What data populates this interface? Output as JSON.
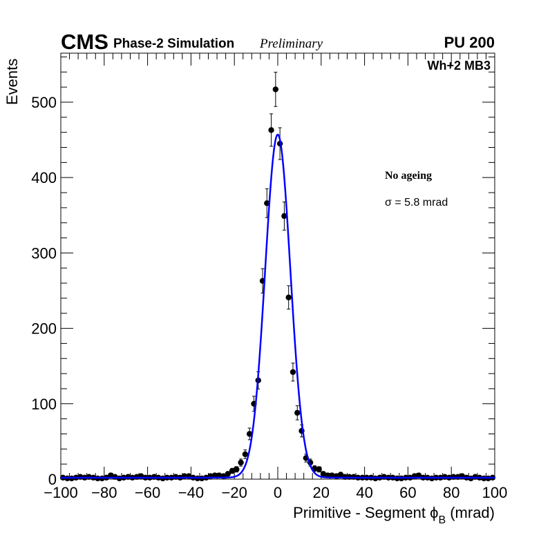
{
  "header": {
    "experiment": "CMS",
    "subtitle": "Phase-2 Simulation",
    "status": "Preliminary",
    "pileup": "PU 200"
  },
  "annotations": {
    "region": "Wh+2 MB3",
    "ageing": "No ageing",
    "sigma_symbol": "σ",
    "sigma_text": " = 5.8 mrad"
  },
  "chart_data": {
    "type": "scatter",
    "xlabel": "Primitive - Segment ϕ",
    "xlabel_sub": "B",
    "xlabel_unit": " (mrad)",
    "ylabel": "Events",
    "xlim": [
      -100,
      100
    ],
    "ylim": [
      0,
      565
    ],
    "x_ticks": [
      -100,
      -80,
      -60,
      -40,
      -20,
      0,
      20,
      40,
      60,
      80,
      100
    ],
    "x_tick_labels": [
      "−100",
      "−80",
      "−60",
      "−40",
      "−20",
      "0",
      "20",
      "40",
      "60",
      "80",
      "100"
    ],
    "y_ticks": [
      0,
      100,
      200,
      300,
      400,
      500
    ],
    "y_tick_labels": [
      "0",
      "100",
      "200",
      "300",
      "400",
      "500"
    ],
    "colors": {
      "points": "#000000",
      "fit": "#0000ff"
    },
    "series": [
      {
        "x": [
          -99,
          -97,
          -95,
          -93,
          -91,
          -89,
          -87,
          -85,
          -83,
          -81,
          -79,
          -77,
          -75,
          -73,
          -71,
          -69,
          -67,
          -65,
          -63,
          -61,
          -59,
          -57,
          -55,
          -53,
          -51,
          -49,
          -47,
          -45,
          -43,
          -41,
          -39,
          -37,
          -35,
          -33,
          -31,
          -29,
          -27,
          -25,
          -23,
          -21,
          -19,
          -17,
          -15,
          -13,
          -11,
          -9,
          -7,
          -5,
          -3,
          -1,
          1,
          3,
          5,
          7,
          9,
          11,
          13,
          15,
          17,
          19,
          21,
          23,
          25,
          27,
          29,
          31,
          33,
          35,
          37,
          39,
          41,
          43,
          45,
          47,
          49,
          51,
          53,
          55,
          57,
          59,
          61,
          63,
          65,
          67,
          69,
          71,
          73,
          75,
          77,
          79,
          81,
          83,
          85,
          87,
          89,
          91,
          93,
          95,
          97,
          99
        ],
        "y": [
          2,
          1,
          1,
          2,
          3,
          2,
          3,
          2,
          1,
          1,
          2,
          5,
          3,
          1,
          2,
          3,
          2,
          3,
          4,
          2,
          2,
          3,
          2,
          1,
          2,
          2,
          3,
          2,
          4,
          4,
          2,
          1,
          1,
          2,
          4,
          5,
          5,
          4,
          7,
          11,
          13,
          22,
          33,
          60,
          100,
          131,
          263,
          366,
          463,
          517,
          445,
          349,
          241,
          142,
          88,
          64,
          28,
          22,
          14,
          13,
          7,
          5,
          5,
          4,
          6,
          3,
          3,
          3,
          2,
          2,
          2,
          2,
          1,
          2,
          3,
          2,
          2,
          1,
          1,
          2,
          2,
          4,
          5,
          2,
          2,
          1,
          2,
          2,
          3,
          2,
          3,
          3,
          4,
          2,
          1,
          3,
          2,
          1,
          1,
          2
        ]
      }
    ],
    "fit": {
      "name": "Gaussian fit",
      "mean": 0,
      "sigma": 5.8,
      "amplitude": 455,
      "baseline": 2
    }
  }
}
